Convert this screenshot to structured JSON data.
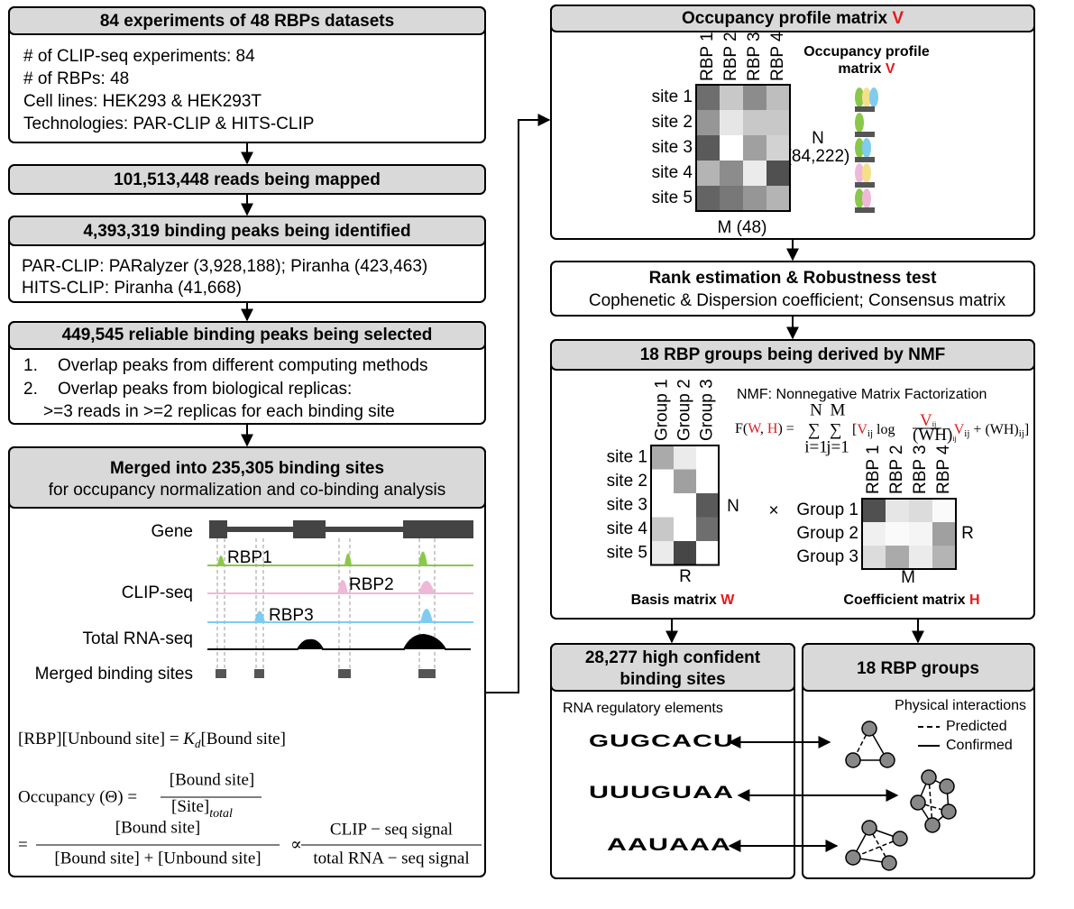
{
  "left": {
    "box1": {
      "title": "84 experiments of 48 RBPs datasets",
      "lines": [
        "# of CLIP-seq experiments: 84",
        "# of RBPs: 48",
        "Cell lines: HEK293 & HEK293T",
        "Technologies: PAR-CLIP & HITS-CLIP"
      ]
    },
    "box2": {
      "title": "101,513,448 reads being mapped"
    },
    "box3": {
      "title": "4,393,319 binding peaks being identified",
      "lines": [
        "PAR-CLIP: PARalyzer (3,928,188); Piranha (423,463)",
        "HITS-CLIP: Piranha (41,668)"
      ]
    },
    "box4": {
      "title": "449,545 reliable binding peaks being selected",
      "items": [
        {
          "number": "1.",
          "text": "Overlap peaks from different computing methods"
        },
        {
          "number": "2.",
          "text": "Overlap peaks from biological replicas:"
        }
      ],
      "note": ">=3 reads in >=2 replicas for each binding site"
    },
    "box5": {
      "title": "Merged into 235,305 binding sites",
      "subtitle": "for occupancy normalization and co-binding analysis",
      "track_labels": [
        "Gene",
        "CLIP-seq",
        "Total RNA-seq",
        "Merged binding sites"
      ],
      "rbp_labels": [
        "RBP1",
        "RBP2",
        "RBP3"
      ],
      "equation1": {
        "left": "[RBP][Unbound site] = ",
        "k": "K",
        "sub": "d",
        "right": "[Bound site]"
      },
      "equation2": {
        "lhs": "Occupancy (Θ) = ",
        "numerator": "[Bound site]",
        "denominator": "[Site]",
        "denominator_sub": "total"
      },
      "equation3": {
        "eq": "=",
        "numerator": "[Bound site]",
        "denominator": "[Bound site] + [Unbound site]",
        "prop": "∝",
        "numerator2": "CLIP − seq signal",
        "denominator2": "total RNA − seq signal"
      }
    }
  },
  "right": {
    "box1": {
      "title": "Occupancy profile matrix ",
      "title_var": "V",
      "columns": [
        "RBP 1",
        "RBP 2",
        "RBP 3",
        "RBP 4"
      ],
      "rows": [
        "site 1",
        "site 2",
        "site 3",
        "site 4",
        "site 5"
      ],
      "n_label": "N",
      "n_value": "(84,222)",
      "m_label": "M (48)",
      "side_title": [
        "Occupancy  profile",
        "matrix "
      ],
      "side_var": "V"
    },
    "box2": {
      "title": "Rank estimation & Robustness test",
      "text": "Cophenetic & Dispersion coefficient; Consensus matrix"
    },
    "box3": {
      "title": "18 RBP groups being derived by NMF",
      "nmf_label": "NMF: Nonnegative Matrix Factorization",
      "formula": {
        "lhs": "F(",
        "w": "W",
        "comma": ", ",
        "h": "H",
        "close": ") =",
        "sigma": "∑",
        "n": "N",
        "i": "i=1",
        "m": "M",
        "j": "j=1",
        "body1": "[",
        "v": "V",
        "ij": "ij",
        "log": " log",
        "wh": "(WH)",
        "body2": " − ",
        "body3": " + (WH)",
        "end": "]"
      },
      "w_columns": [
        "Group 1",
        "Group 2",
        "Group 3"
      ],
      "w_rows": [
        "site 1",
        "site 2",
        "site 3",
        "site 4",
        "site 5"
      ],
      "w_n": "N",
      "w_r": "R",
      "w_caption": "Basis matrix ",
      "w_var": "W",
      "times": "×",
      "h_columns": [
        "RBP 1",
        "RBP 2",
        "RBP 3",
        "RBP 4"
      ],
      "h_rows": [
        "Group 1",
        "Group 2",
        "Group 3"
      ],
      "h_r": "R",
      "h_m": "M",
      "h_caption": "Coefficient matrix ",
      "h_var": "H"
    },
    "box4": {
      "title": [
        "28,277 high confident",
        "binding sites"
      ],
      "label": "RNA regulatory elements",
      "motifs": [
        [
          "G",
          "U",
          "G",
          "C",
          "A",
          "C",
          "U"
        ],
        [
          "U",
          "U",
          "U",
          "G",
          "U",
          "A",
          "A"
        ],
        [
          "A",
          "A",
          "U",
          "A",
          "A",
          "A"
        ]
      ]
    },
    "box5": {
      "title": "18 RBP groups",
      "label": "Physical interactions",
      "legend": [
        "Predicted",
        "Confirmed"
      ]
    }
  }
}
